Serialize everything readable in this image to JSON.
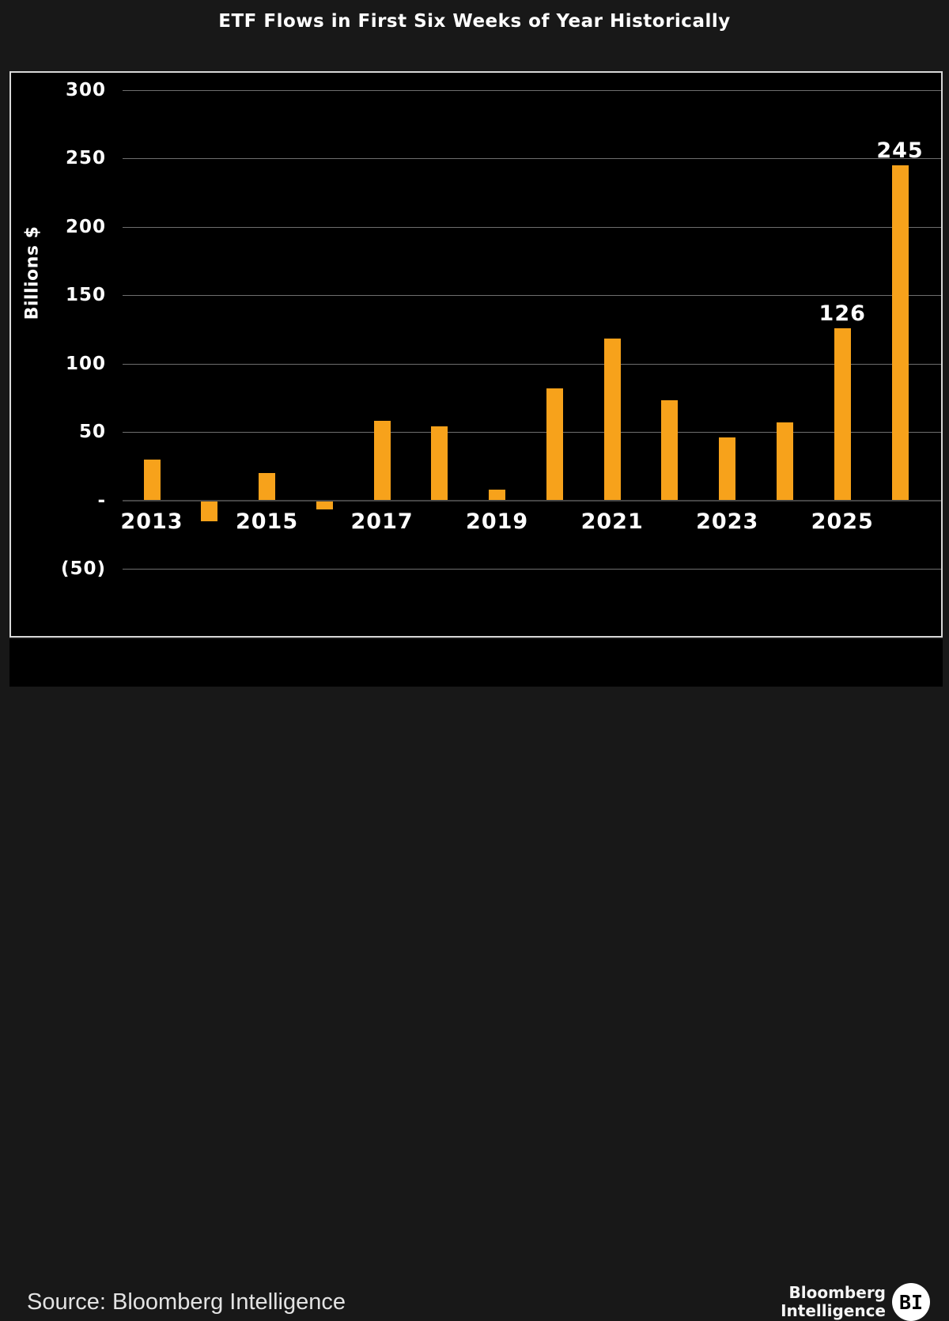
{
  "chart_data": {
    "type": "bar",
    "title": "ETF Flows in First Six Weeks of Year Historically",
    "xlabel": "",
    "ylabel": "Billions $",
    "ylim": [
      -50,
      300
    ],
    "grid": true,
    "legend": "none",
    "categories": [
      2013,
      2014,
      2015,
      2016,
      2017,
      2018,
      2019,
      2020,
      2021,
      2022,
      2023,
      2024,
      2025,
      2026
    ],
    "values": [
      30,
      -15,
      20,
      -6,
      58,
      54,
      8,
      82,
      118,
      73,
      46,
      57,
      126,
      245
    ],
    "bar_labels": [
      "",
      "",
      "",
      "",
      "",
      "",
      "",
      "",
      "",
      "",
      "",
      "",
      "126",
      "245"
    ],
    "yticks": [
      {
        "value": 300,
        "label": "300"
      },
      {
        "value": 250,
        "label": "250"
      },
      {
        "value": 200,
        "label": "200"
      },
      {
        "value": 150,
        "label": "150"
      },
      {
        "value": 100,
        "label": "100"
      },
      {
        "value": 50,
        "label": "50"
      },
      {
        "value": 0,
        "label": "-"
      },
      {
        "value": -50,
        "label": "(50)"
      }
    ],
    "xticks_shown": [
      2013,
      2015,
      2017,
      2019,
      2021,
      2023,
      2025
    ]
  },
  "footer": {
    "source_label": "Source: Bloomberg Intelligence",
    "logo_line1": "Bloomberg",
    "logo_line2": "Intelligence",
    "logo_badge": "BI"
  },
  "colors": {
    "outer_background": "#181818",
    "plot_background": "#000000",
    "frame_border": "#d8d8d8",
    "bar": "#f7a21b",
    "gridline": "#6e6e6e",
    "zero_line": "#454545",
    "text": "#ffffff",
    "source_text": "#e3e3e3"
  }
}
